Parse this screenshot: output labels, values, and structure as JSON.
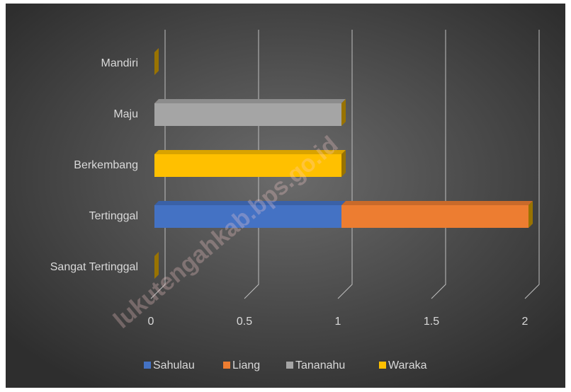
{
  "chart_data": {
    "type": "bar",
    "orientation": "horizontal",
    "stacked": true,
    "categories": [
      "Sangat Tertinggal",
      "Tertinggal",
      "Berkembang",
      "Maju",
      "Mandiri"
    ],
    "series": [
      {
        "name": "Sahulau",
        "color": "#4472c4",
        "values": [
          0,
          1,
          0,
          0,
          0
        ]
      },
      {
        "name": "Liang",
        "color": "#ed7d31",
        "values": [
          0,
          1,
          0,
          0,
          0
        ]
      },
      {
        "name": "Tananahu",
        "color": "#a5a5a5",
        "values": [
          0,
          0,
          0,
          1,
          0
        ]
      },
      {
        "name": "Waraka",
        "color": "#ffc000",
        "values": [
          0,
          0,
          1,
          0,
          0
        ]
      }
    ],
    "xlim": [
      0,
      2
    ],
    "xticks": [
      0,
      0.5,
      1,
      1.5,
      2
    ],
    "grid": true,
    "legend": "bottom",
    "watermark": "lukutengahkab.bps.go.id"
  }
}
